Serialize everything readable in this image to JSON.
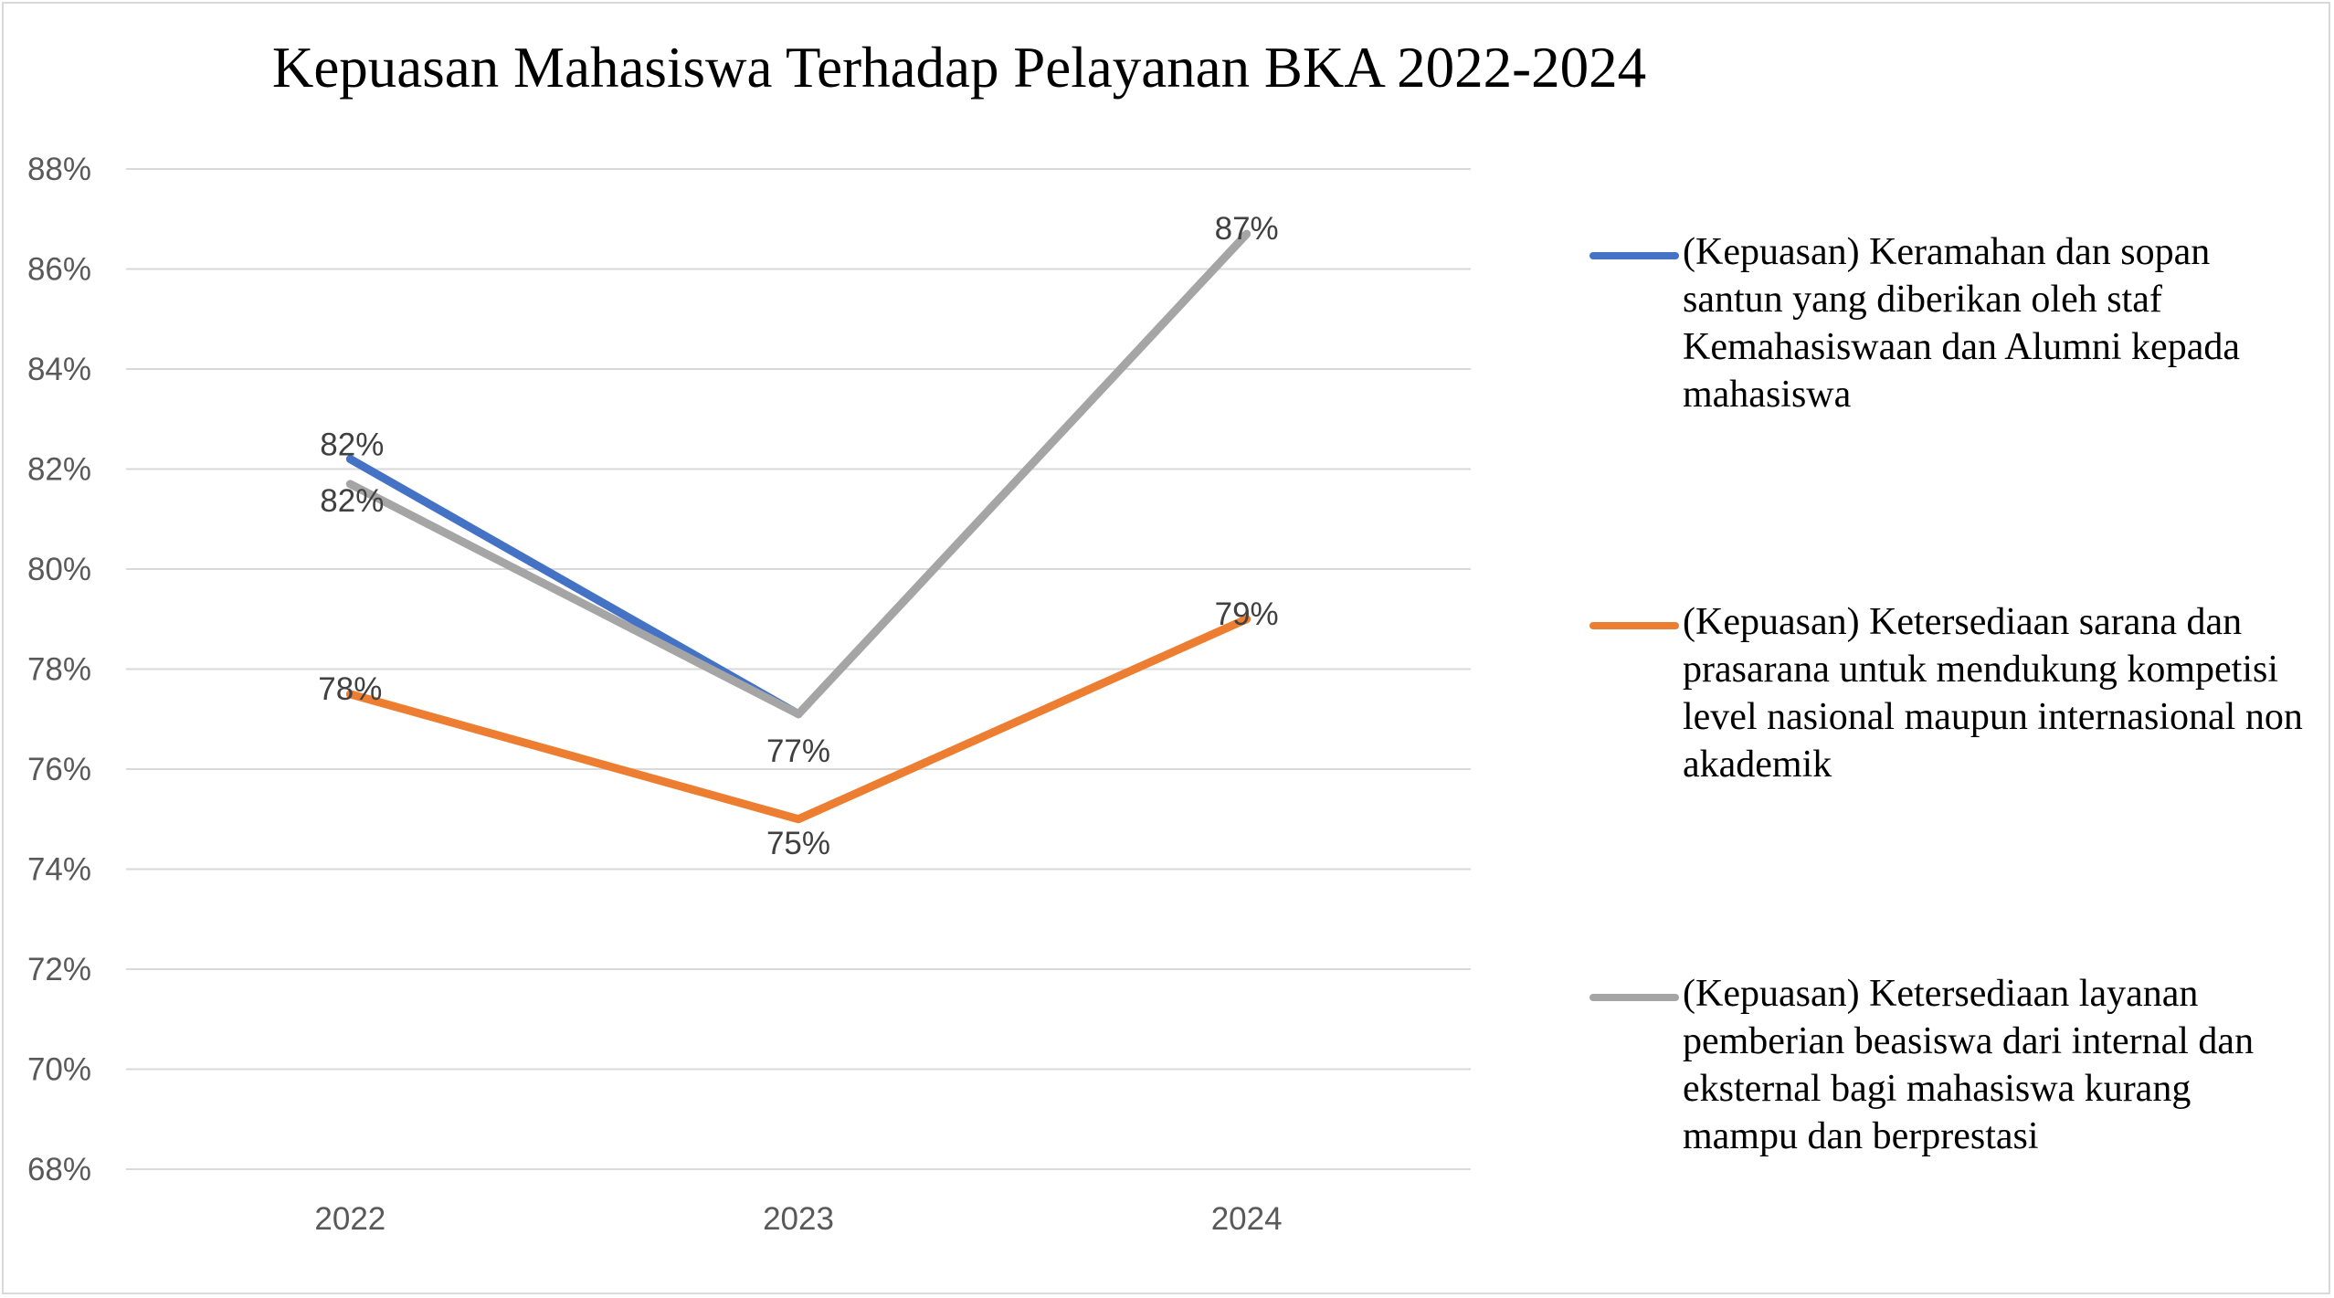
{
  "chart_data": {
    "type": "line",
    "title": "Kepuasan Mahasiswa Terhadap Pelayanan BKA 2022-2024",
    "xlabel": "",
    "ylabel": "",
    "categories": [
      "2022",
      "2023",
      "2024"
    ],
    "ylim": [
      68,
      88
    ],
    "yticks": [
      "68%",
      "70%",
      "72%",
      "74%",
      "76%",
      "78%",
      "80%",
      "82%",
      "84%",
      "86%",
      "88%"
    ],
    "grid": true,
    "legend_position": "right",
    "series": [
      {
        "name": "(Kepuasan) Keramahan dan sopan santun yang diberikan oleh staf Kemahasiswaan dan Alumni kepada mahasiswa",
        "color": "#4472c4",
        "values": [
          82.2,
          77.1,
          null
        ],
        "labels": [
          "82%",
          "",
          ""
        ]
      },
      {
        "name": "(Kepuasan) Ketersediaan sarana dan prasarana untuk mendukung kompetisi level nasional maupun internasional non akademik",
        "color": "#ed7d31",
        "values": [
          77.5,
          75.0,
          79.0
        ],
        "labels": [
          "78%",
          "75%",
          "79%"
        ]
      },
      {
        "name": "(Kepuasan) Ketersediaan layanan pemberian beasiswa dari internal dan eksternal bagi mahasiswa kurang mampu dan berprestasi",
        "color": "#a5a5a5",
        "values": [
          81.7,
          77.1,
          86.7
        ],
        "labels": [
          "82%",
          "77%",
          "87%"
        ]
      }
    ]
  }
}
